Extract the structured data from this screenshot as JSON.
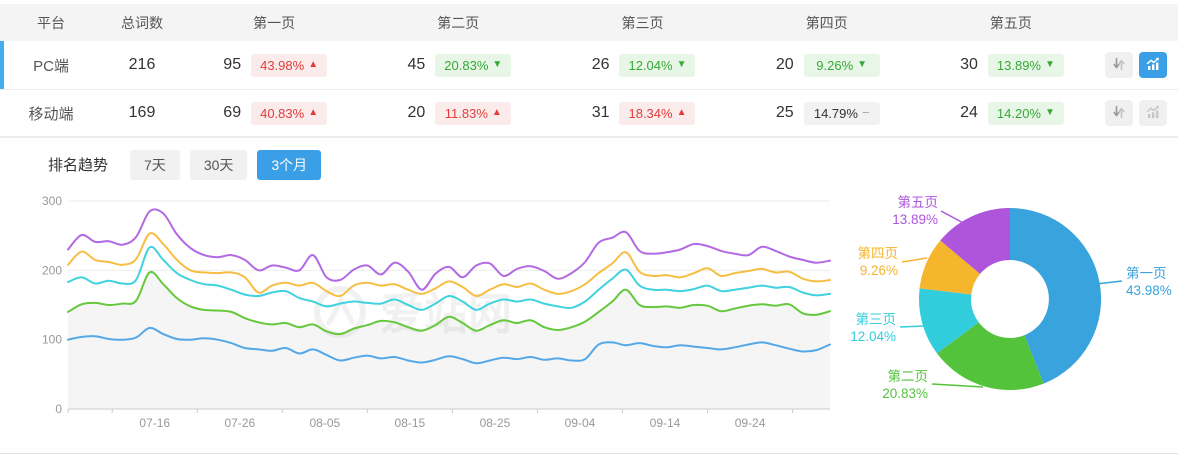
{
  "accent_color": "#3B9FE8",
  "table": {
    "columns": [
      "平台",
      "总词数",
      "第一页",
      "第二页",
      "第三页",
      "第四页",
      "第五页"
    ],
    "rows": [
      {
        "platform": "PC端",
        "total": "216",
        "selected": true,
        "pages": [
          {
            "count": "95",
            "percent": "43.98%",
            "dir": "up"
          },
          {
            "count": "45",
            "percent": "20.83%",
            "dir": "down"
          },
          {
            "count": "26",
            "percent": "12.04%",
            "dir": "down"
          },
          {
            "count": "20",
            "percent": "9.26%",
            "dir": "down"
          },
          {
            "count": "30",
            "percent": "13.89%",
            "dir": "down"
          }
        ]
      },
      {
        "platform": "移动端",
        "total": "169",
        "selected": false,
        "pages": [
          {
            "count": "69",
            "percent": "40.83%",
            "dir": "up"
          },
          {
            "count": "20",
            "percent": "11.83%",
            "dir": "up"
          },
          {
            "count": "31",
            "percent": "18.34%",
            "dir": "up"
          },
          {
            "count": "25",
            "percent": "14.79%",
            "dir": "flat"
          },
          {
            "count": "24",
            "percent": "14.20%",
            "dir": "down"
          }
        ]
      }
    ]
  },
  "icons": {
    "up": "▲",
    "down": "▼",
    "flat": "−"
  },
  "badge_colors": {
    "up_text": "#E23C3C",
    "up_bg": "#FBEBEB",
    "down_text": "#36A936",
    "down_bg": "#E8F6E8",
    "flat_text": "#333333",
    "flat_bg": "#F2F2F2"
  },
  "trend": {
    "title": "排名趋势",
    "tabs": [
      "7天",
      "30天",
      "3个月"
    ],
    "active_tab": "3个月"
  },
  "chart_data": [
    {
      "type": "line",
      "title": "排名趋势 3个月",
      "x_ticks": [
        "07-16",
        "07-26",
        "08-05",
        "08-15",
        "08-25",
        "09-04",
        "09-14",
        "09-24"
      ],
      "y_ticks": [
        0,
        100,
        200,
        300
      ],
      "ylim": [
        0,
        300
      ],
      "grid": true,
      "legend": "none",
      "watermark": "爱站网",
      "series": [
        {
          "name": "第一页",
          "color": "#54A8E8",
          "values": [
            100,
            104,
            105,
            101,
            100,
            103,
            117,
            108,
            101,
            100,
            102,
            100,
            95,
            88,
            86,
            84,
            88,
            80,
            86,
            78,
            70,
            74,
            77,
            73,
            75,
            70,
            67,
            71,
            76,
            72,
            66,
            70,
            74,
            72,
            75,
            71,
            73,
            70,
            72,
            93,
            96,
            92,
            95,
            91,
            89,
            92,
            90,
            88,
            86,
            89,
            93,
            96,
            92,
            87,
            83,
            85,
            93
          ]
        },
        {
          "name": "第二页",
          "color": "#65C83D",
          "area_fill": "#f5f5f5",
          "values": [
            140,
            151,
            153,
            150,
            152,
            156,
            197,
            180,
            160,
            148,
            143,
            142,
            140,
            131,
            125,
            122,
            124,
            118,
            122,
            112,
            108,
            116,
            121,
            127,
            125,
            118,
            113,
            121,
            133,
            124,
            113,
            121,
            128,
            124,
            128,
            118,
            114,
            118,
            126,
            140,
            155,
            172,
            150,
            147,
            148,
            146,
            150,
            149,
            141,
            145,
            149,
            151,
            149,
            151,
            138,
            136,
            141
          ]
        },
        {
          "name": "第三页",
          "color": "#40D2DE",
          "values": [
            183,
            190,
            181,
            185,
            181,
            186,
            233,
            215,
            196,
            186,
            180,
            178,
            172,
            165,
            163,
            168,
            170,
            160,
            155,
            148,
            152,
            155,
            153,
            152,
            158,
            150,
            143,
            152,
            163,
            155,
            143,
            152,
            158,
            155,
            158,
            152,
            148,
            146,
            155,
            172,
            188,
            201,
            178,
            172,
            172,
            170,
            173,
            178,
            170,
            172,
            175,
            178,
            175,
            176,
            168,
            164,
            166
          ]
        },
        {
          "name": "第四页",
          "color": "#F6BE43",
          "values": [
            208,
            227,
            215,
            212,
            208,
            216,
            253,
            238,
            215,
            200,
            197,
            196,
            197,
            190,
            168,
            178,
            182,
            178,
            182,
            170,
            163,
            178,
            182,
            178,
            180,
            172,
            166,
            174,
            184,
            176,
            163,
            172,
            180,
            176,
            181,
            172,
            166,
            170,
            180,
            196,
            210,
            226,
            198,
            192,
            193,
            190,
            196,
            203,
            192,
            196,
            199,
            202,
            197,
            198,
            188,
            184,
            186
          ]
        },
        {
          "name": "第五页",
          "color": "#B269E2",
          "values": [
            230,
            251,
            241,
            242,
            237,
            248,
            285,
            282,
            252,
            232,
            222,
            219,
            222,
            215,
            200,
            207,
            204,
            200,
            222,
            190,
            186,
            201,
            207,
            194,
            211,
            198,
            172,
            195,
            205,
            190,
            207,
            210,
            192,
            202,
            206,
            199,
            188,
            196,
            212,
            240,
            247,
            255,
            228,
            224,
            226,
            230,
            238,
            235,
            228,
            224,
            222,
            234,
            228,
            220,
            215,
            211,
            214
          ]
        }
      ]
    },
    {
      "type": "pie",
      "donut": true,
      "slices": [
        {
          "label": "第一页",
          "value": 43.98,
          "display": "43.98%",
          "color": "#38A3DC"
        },
        {
          "label": "第二页",
          "value": 20.83,
          "display": "20.83%",
          "color": "#54C33C"
        },
        {
          "label": "第三页",
          "value": 12.04,
          "display": "12.04%",
          "color": "#31CDDD"
        },
        {
          "label": "第四页",
          "value": 9.26,
          "display": "9.26%",
          "color": "#F5B52C"
        },
        {
          "label": "第五页",
          "value": 13.89,
          "display": "13.89%",
          "color": "#AE55DC"
        }
      ]
    }
  ]
}
